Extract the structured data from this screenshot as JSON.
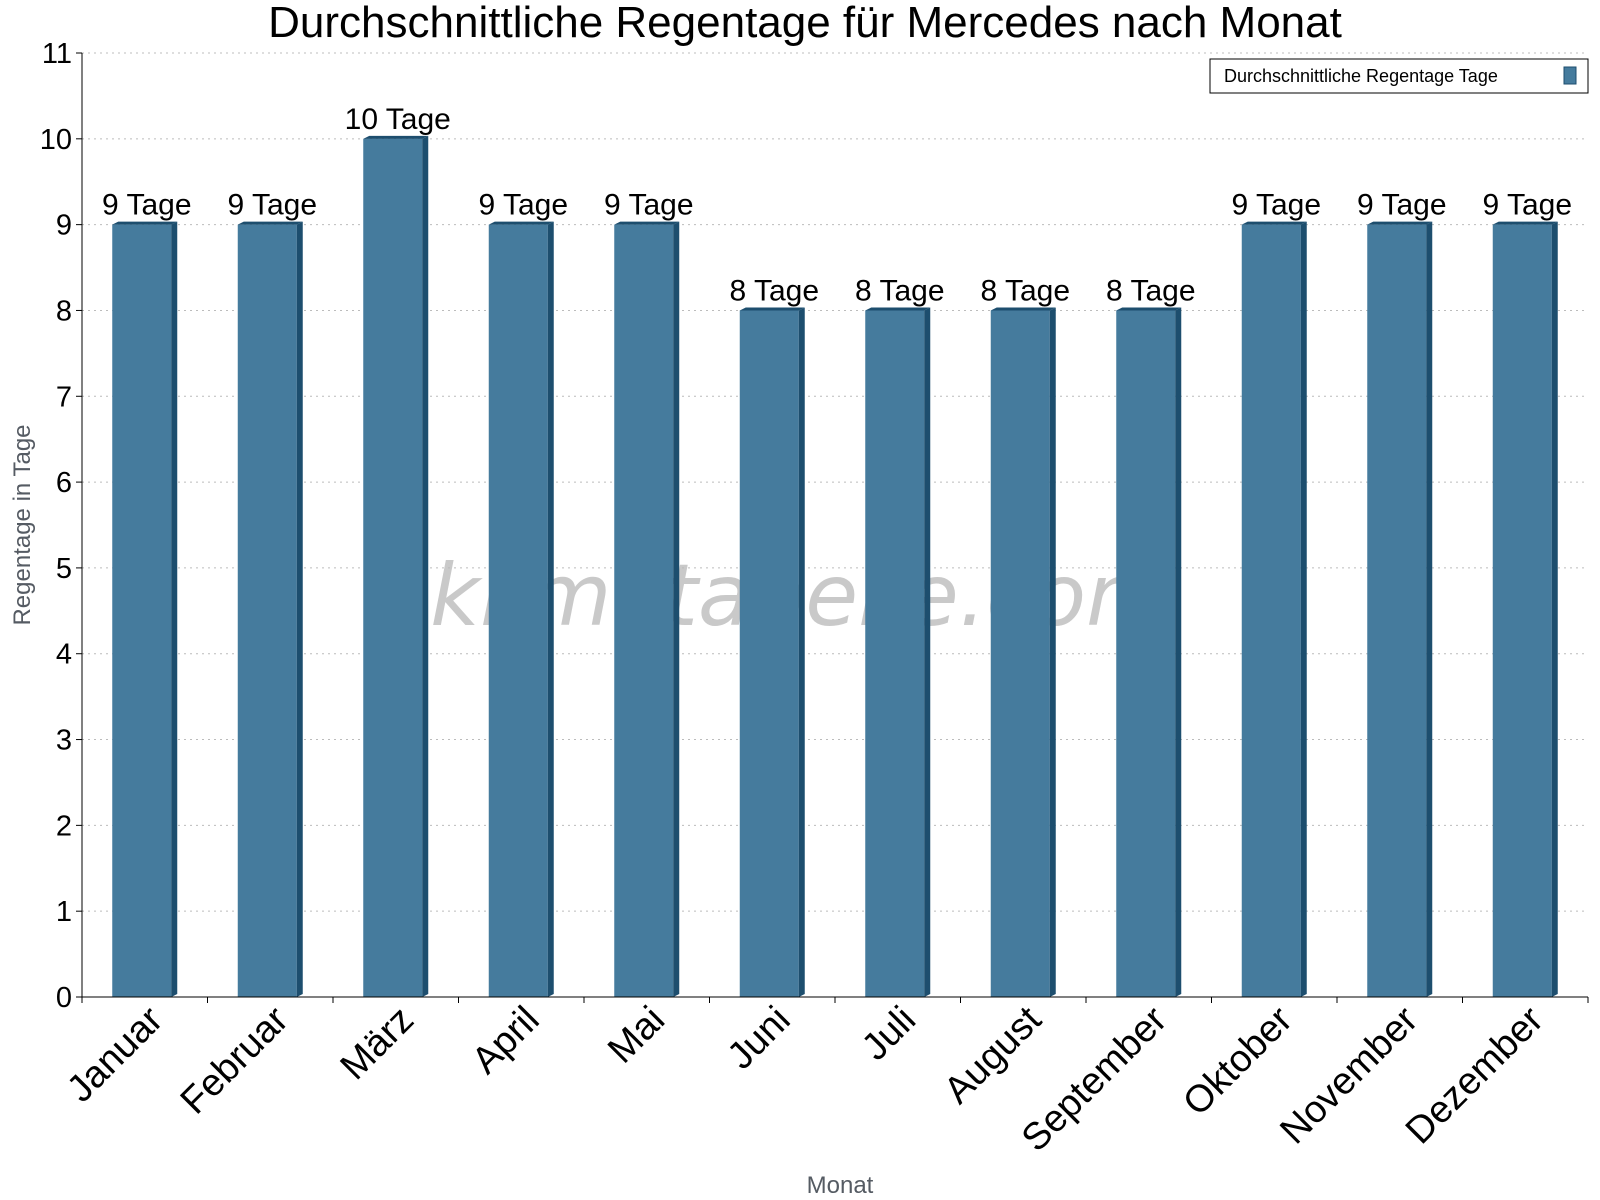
{
  "chart_data": {
    "type": "bar",
    "title": "Durchschnittliche Regentage für Mercedes nach Monat",
    "xlabel": "Monat",
    "ylabel": "Regentage in Tage",
    "categories": [
      "Januar",
      "Februar",
      "März",
      "April",
      "Mai",
      "Juni",
      "Juli",
      "August",
      "September",
      "Oktober",
      "November",
      "Dezember"
    ],
    "series": [
      {
        "name": "Durchschnittliche Regentage Tage",
        "values": [
          9,
          9,
          10,
          9,
          9,
          8,
          8,
          8,
          8,
          9,
          9,
          9
        ],
        "color": "#457b9d"
      }
    ],
    "value_suffix": " Tage",
    "ylim": [
      0,
      11
    ],
    "yticks": [
      0,
      1,
      2,
      3,
      4,
      5,
      6,
      7,
      8,
      9,
      10,
      11
    ],
    "grid": true,
    "legend_position": "top-right",
    "watermark": "klimatabelle.com"
  },
  "colors": {
    "bar_face": "#457b9d",
    "bar_side": "#1d4e6e",
    "grid": "#bcbcbc",
    "axis": "#000000"
  }
}
